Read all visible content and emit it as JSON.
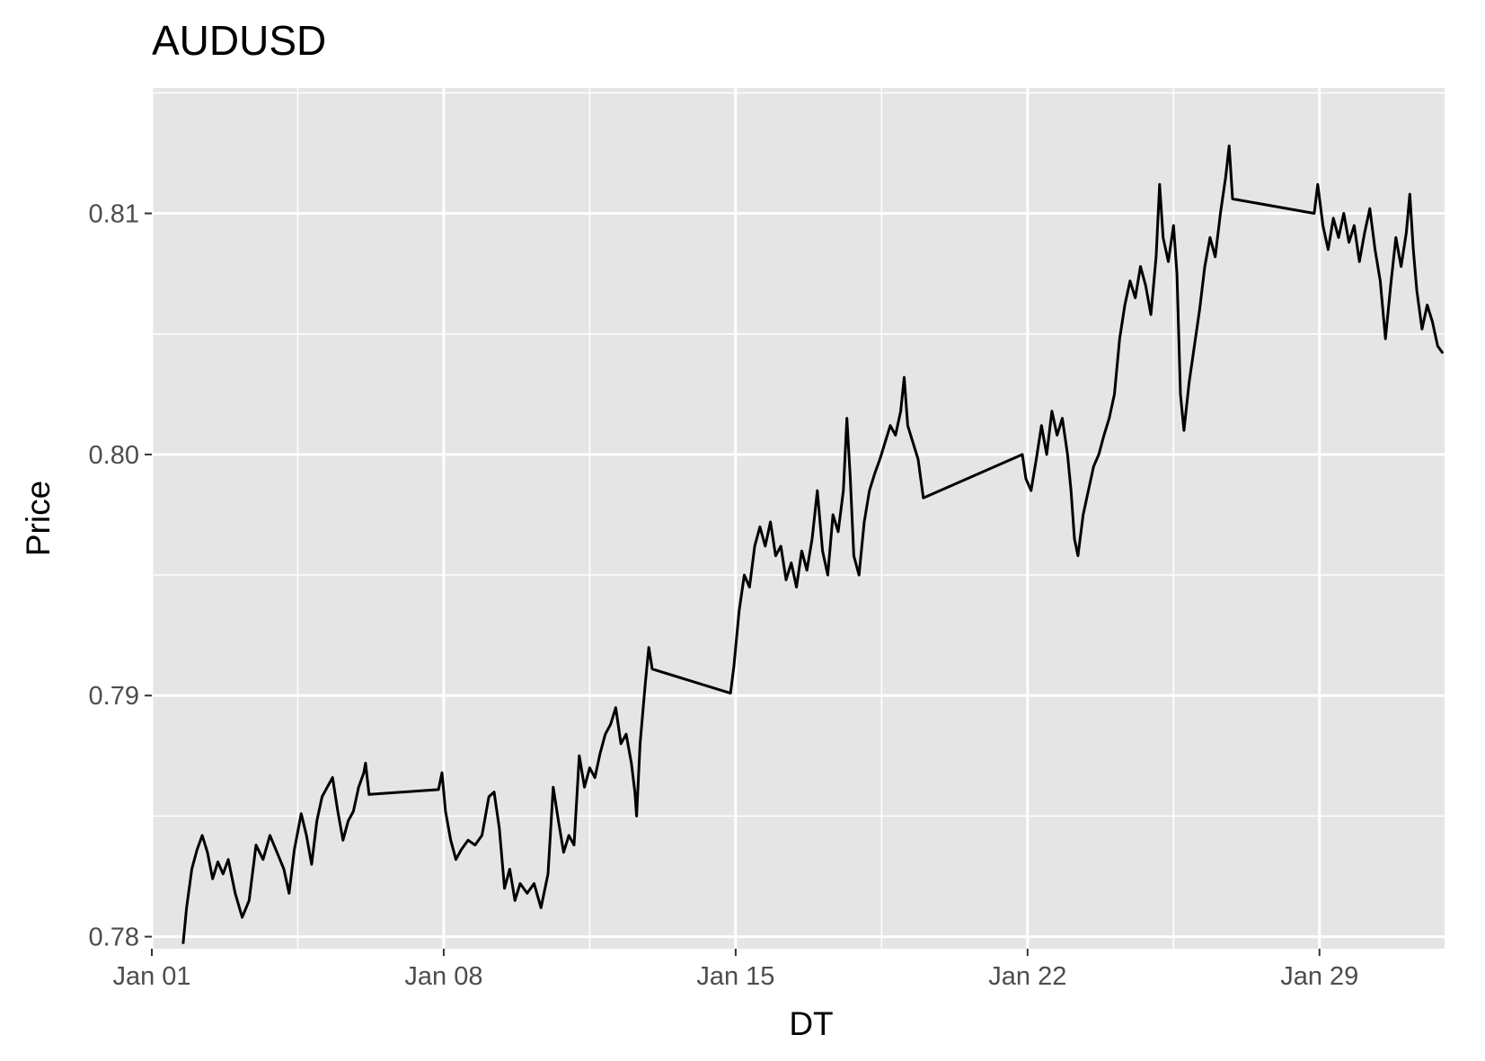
{
  "chart_data": {
    "type": "line",
    "title": "AUDUSD",
    "xlabel": "DT",
    "ylabel": "Price",
    "x_type": "date",
    "xlim": [
      "2018-01-01",
      "2018-02-01"
    ],
    "ylim": [
      0.7795,
      0.8152
    ],
    "x_ticks": [
      {
        "value": "2018-01-01",
        "label": "Jan 01"
      },
      {
        "value": "2018-01-08",
        "label": "Jan 08"
      },
      {
        "value": "2018-01-15",
        "label": "Jan 15"
      },
      {
        "value": "2018-01-22",
        "label": "Jan 22"
      },
      {
        "value": "2018-01-29",
        "label": "Jan 29"
      }
    ],
    "y_ticks": [
      {
        "value": 0.78,
        "label": "0.78"
      },
      {
        "value": 0.79,
        "label": "0.79"
      },
      {
        "value": 0.8,
        "label": "0.80"
      },
      {
        "value": 0.81,
        "label": "0.81"
      }
    ],
    "grid": true,
    "line_color": "#000000",
    "panel_color": "#e5e5e5",
    "grid_color": "#ffffff",
    "series": [
      {
        "points": [
          [
            "2018-01-01 18:00",
            0.7797
          ],
          [
            "2018-01-01 20:00",
            0.7812
          ],
          [
            "2018-01-01 23:00",
            0.7828
          ],
          [
            "2018-01-02 02:00",
            0.7836
          ],
          [
            "2018-01-02 05:00",
            0.7842
          ],
          [
            "2018-01-02 08:00",
            0.7835
          ],
          [
            "2018-01-02 11:00",
            0.7824
          ],
          [
            "2018-01-02 14:00",
            0.7831
          ],
          [
            "2018-01-02 17:00",
            0.7826
          ],
          [
            "2018-01-02 20:00",
            0.7832
          ],
          [
            "2018-01-03 00:00",
            0.7818
          ],
          [
            "2018-01-03 04:00",
            0.7808
          ],
          [
            "2018-01-03 08:00",
            0.7815
          ],
          [
            "2018-01-03 12:00",
            0.7838
          ],
          [
            "2018-01-03 16:00",
            0.7832
          ],
          [
            "2018-01-03 20:00",
            0.7842
          ],
          [
            "2018-01-04 00:00",
            0.7835
          ],
          [
            "2018-01-04 04:00",
            0.7828
          ],
          [
            "2018-01-04 07:00",
            0.7818
          ],
          [
            "2018-01-04 10:00",
            0.7836
          ],
          [
            "2018-01-04 14:00",
            0.7851
          ],
          [
            "2018-01-04 17:00",
            0.7842
          ],
          [
            "2018-01-04 20:00",
            0.783
          ],
          [
            "2018-01-04 23:00",
            0.7848
          ],
          [
            "2018-01-05 02:00",
            0.7858
          ],
          [
            "2018-01-05 05:00",
            0.7862
          ],
          [
            "2018-01-05 08:00",
            0.7866
          ],
          [
            "2018-01-05 11:00",
            0.7852
          ],
          [
            "2018-01-05 14:00",
            0.784
          ],
          [
            "2018-01-05 17:00",
            0.7848
          ],
          [
            "2018-01-05 20:00",
            0.7852
          ],
          [
            "2018-01-05 23:00",
            0.7862
          ],
          [
            "2018-01-06 02:00",
            0.7868
          ],
          [
            "2018-01-06 03:00",
            0.7872
          ],
          [
            "2018-01-06 05:00",
            0.7859
          ],
          [
            "2018-01-07 21:00",
            0.7861
          ],
          [
            "2018-01-07 23:00",
            0.7868
          ],
          [
            "2018-01-08 01:00",
            0.7852
          ],
          [
            "2018-01-08 04:00",
            0.784
          ],
          [
            "2018-01-08 07:00",
            0.7832
          ],
          [
            "2018-01-08 10:00",
            0.7836
          ],
          [
            "2018-01-08 14:00",
            0.784
          ],
          [
            "2018-01-08 18:00",
            0.7838
          ],
          [
            "2018-01-08 22:00",
            0.7842
          ],
          [
            "2018-01-09 02:00",
            0.7858
          ],
          [
            "2018-01-09 05:00",
            0.786
          ],
          [
            "2018-01-09 08:00",
            0.7845
          ],
          [
            "2018-01-09 11:00",
            0.782
          ],
          [
            "2018-01-09 14:00",
            0.7828
          ],
          [
            "2018-01-09 17:00",
            0.7815
          ],
          [
            "2018-01-09 20:00",
            0.7822
          ],
          [
            "2018-01-10 00:00",
            0.7818
          ],
          [
            "2018-01-10 04:00",
            0.7822
          ],
          [
            "2018-01-10 08:00",
            0.7812
          ],
          [
            "2018-01-10 12:00",
            0.7826
          ],
          [
            "2018-01-10 15:00",
            0.7862
          ],
          [
            "2018-01-10 18:00",
            0.7848
          ],
          [
            "2018-01-10 21:00",
            0.7835
          ],
          [
            "2018-01-11 00:00",
            0.7842
          ],
          [
            "2018-01-11 03:00",
            0.7838
          ],
          [
            "2018-01-11 06:00",
            0.7875
          ],
          [
            "2018-01-11 09:00",
            0.7862
          ],
          [
            "2018-01-11 12:00",
            0.787
          ],
          [
            "2018-01-11 15:00",
            0.7866
          ],
          [
            "2018-01-11 18:00",
            0.7876
          ],
          [
            "2018-01-11 21:00",
            0.7884
          ],
          [
            "2018-01-12 00:00",
            0.7888
          ],
          [
            "2018-01-12 03:00",
            0.7895
          ],
          [
            "2018-01-12 06:00",
            0.788
          ],
          [
            "2018-01-12 09:00",
            0.7884
          ],
          [
            "2018-01-12 12:00",
            0.7872
          ],
          [
            "2018-01-12 14:00",
            0.786
          ],
          [
            "2018-01-12 15:00",
            0.785
          ],
          [
            "2018-01-12 17:00",
            0.788
          ],
          [
            "2018-01-12 20:00",
            0.7905
          ],
          [
            "2018-01-12 22:00",
            0.792
          ],
          [
            "2018-01-13 00:00",
            0.7911
          ],
          [
            "2018-01-14 21:00",
            0.7901
          ],
          [
            "2018-01-14 23:00",
            0.7912
          ],
          [
            "2018-01-15 02:00",
            0.7935
          ],
          [
            "2018-01-15 05:00",
            0.795
          ],
          [
            "2018-01-15 08:00",
            0.7945
          ],
          [
            "2018-01-15 11:00",
            0.7962
          ],
          [
            "2018-01-15 14:00",
            0.797
          ],
          [
            "2018-01-15 17:00",
            0.7962
          ],
          [
            "2018-01-15 20:00",
            0.7972
          ],
          [
            "2018-01-15 23:00",
            0.7958
          ],
          [
            "2018-01-16 02:00",
            0.7962
          ],
          [
            "2018-01-16 05:00",
            0.7948
          ],
          [
            "2018-01-16 08:00",
            0.7955
          ],
          [
            "2018-01-16 11:00",
            0.7945
          ],
          [
            "2018-01-16 14:00",
            0.796
          ],
          [
            "2018-01-16 17:00",
            0.7952
          ],
          [
            "2018-01-16 20:00",
            0.7965
          ],
          [
            "2018-01-16 23:00",
            0.7985
          ],
          [
            "2018-01-17 02:00",
            0.796
          ],
          [
            "2018-01-17 05:00",
            0.795
          ],
          [
            "2018-01-17 08:00",
            0.7975
          ],
          [
            "2018-01-17 11:00",
            0.7968
          ],
          [
            "2018-01-17 14:00",
            0.7985
          ],
          [
            "2018-01-17 16:00",
            0.8015
          ],
          [
            "2018-01-17 18:00",
            0.799
          ],
          [
            "2018-01-17 20:00",
            0.7958
          ],
          [
            "2018-01-17 23:00",
            0.795
          ],
          [
            "2018-01-18 02:00",
            0.7972
          ],
          [
            "2018-01-18 05:00",
            0.7985
          ],
          [
            "2018-01-18 08:00",
            0.7992
          ],
          [
            "2018-01-18 11:00",
            0.7998
          ],
          [
            "2018-01-18 14:00",
            0.8005
          ],
          [
            "2018-01-18 17:00",
            0.8012
          ],
          [
            "2018-01-18 20:00",
            0.8008
          ],
          [
            "2018-01-18 23:00",
            0.8018
          ],
          [
            "2018-01-19 01:00",
            0.8032
          ],
          [
            "2018-01-19 03:00",
            0.8012
          ],
          [
            "2018-01-19 06:00",
            0.8005
          ],
          [
            "2018-01-19 09:00",
            0.7998
          ],
          [
            "2018-01-19 12:00",
            0.7982
          ],
          [
            "2018-01-21 21:00",
            0.8
          ],
          [
            "2018-01-21 23:00",
            0.799
          ],
          [
            "2018-01-22 02:00",
            0.7985
          ],
          [
            "2018-01-22 05:00",
            0.7998
          ],
          [
            "2018-01-22 08:00",
            0.8012
          ],
          [
            "2018-01-22 11:00",
            0.8
          ],
          [
            "2018-01-22 14:00",
            0.8018
          ],
          [
            "2018-01-22 17:00",
            0.8008
          ],
          [
            "2018-01-22 20:00",
            0.8015
          ],
          [
            "2018-01-22 23:00",
            0.8
          ],
          [
            "2018-01-23 01:00",
            0.7985
          ],
          [
            "2018-01-23 03:00",
            0.7965
          ],
          [
            "2018-01-23 05:00",
            0.7958
          ],
          [
            "2018-01-23 08:00",
            0.7975
          ],
          [
            "2018-01-23 11:00",
            0.7985
          ],
          [
            "2018-01-23 14:00",
            0.7995
          ],
          [
            "2018-01-23 17:00",
            0.8
          ],
          [
            "2018-01-23 20:00",
            0.8008
          ],
          [
            "2018-01-23 23:00",
            0.8015
          ],
          [
            "2018-01-24 02:00",
            0.8025
          ],
          [
            "2018-01-24 05:00",
            0.8048
          ],
          [
            "2018-01-24 08:00",
            0.8062
          ],
          [
            "2018-01-24 11:00",
            0.8072
          ],
          [
            "2018-01-24 14:00",
            0.8065
          ],
          [
            "2018-01-24 17:00",
            0.8078
          ],
          [
            "2018-01-24 20:00",
            0.807
          ],
          [
            "2018-01-24 23:00",
            0.8058
          ],
          [
            "2018-01-25 02:00",
            0.8082
          ],
          [
            "2018-01-25 04:00",
            0.8112
          ],
          [
            "2018-01-25 06:00",
            0.809
          ],
          [
            "2018-01-25 09:00",
            0.808
          ],
          [
            "2018-01-25 12:00",
            0.8095
          ],
          [
            "2018-01-25 14:00",
            0.8075
          ],
          [
            "2018-01-25 16:00",
            0.8025
          ],
          [
            "2018-01-25 18:00",
            0.801
          ],
          [
            "2018-01-25 21:00",
            0.803
          ],
          [
            "2018-01-26 00:00",
            0.8045
          ],
          [
            "2018-01-26 03:00",
            0.806
          ],
          [
            "2018-01-26 06:00",
            0.8078
          ],
          [
            "2018-01-26 09:00",
            0.809
          ],
          [
            "2018-01-26 12:00",
            0.8082
          ],
          [
            "2018-01-26 15:00",
            0.81
          ],
          [
            "2018-01-26 18:00",
            0.8115
          ],
          [
            "2018-01-26 20:00",
            0.8128
          ],
          [
            "2018-01-26 22:00",
            0.8106
          ],
          [
            "2018-01-28 21:00",
            0.81
          ],
          [
            "2018-01-28 23:00",
            0.8112
          ],
          [
            "2018-01-29 02:00",
            0.8095
          ],
          [
            "2018-01-29 05:00",
            0.8085
          ],
          [
            "2018-01-29 08:00",
            0.8098
          ],
          [
            "2018-01-29 11:00",
            0.809
          ],
          [
            "2018-01-29 14:00",
            0.81
          ],
          [
            "2018-01-29 17:00",
            0.8088
          ],
          [
            "2018-01-29 20:00",
            0.8095
          ],
          [
            "2018-01-29 23:00",
            0.808
          ],
          [
            "2018-01-30 02:00",
            0.8092
          ],
          [
            "2018-01-30 05:00",
            0.8102
          ],
          [
            "2018-01-30 08:00",
            0.8085
          ],
          [
            "2018-01-30 11:00",
            0.8072
          ],
          [
            "2018-01-30 14:00",
            0.8048
          ],
          [
            "2018-01-30 17:00",
            0.807
          ],
          [
            "2018-01-30 20:00",
            0.809
          ],
          [
            "2018-01-30 23:00",
            0.8078
          ],
          [
            "2018-01-31 02:00",
            0.8092
          ],
          [
            "2018-01-31 04:00",
            0.8108
          ],
          [
            "2018-01-31 06:00",
            0.8085
          ],
          [
            "2018-01-31 08:00",
            0.8068
          ],
          [
            "2018-01-31 11:00",
            0.8052
          ],
          [
            "2018-01-31 14:00",
            0.8062
          ],
          [
            "2018-01-31 17:00",
            0.8055
          ],
          [
            "2018-01-31 20:00",
            0.8045
          ],
          [
            "2018-01-31 23:00",
            0.8042
          ]
        ]
      }
    ]
  }
}
